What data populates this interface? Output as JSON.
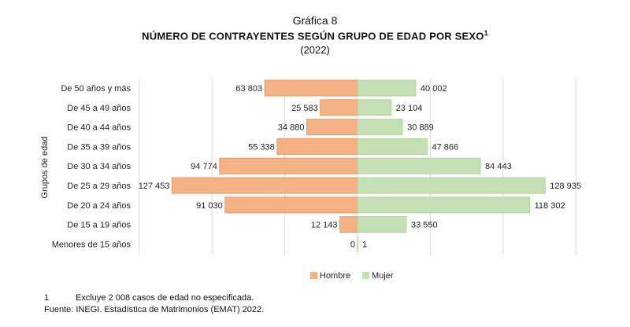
{
  "header": {
    "label": "Gráfica 8",
    "title": "NÚMERO DE CONTRAYENTES SEGÚN GRUPO DE EDAD POR SEXO",
    "title_note": "1",
    "subtitle": "(2022)"
  },
  "chart_data": {
    "type": "bar",
    "orientation": "horizontal",
    "layout": "population-pyramid",
    "ylabel": "Grupos de edad",
    "categories": [
      "De 50 años y más",
      "De 45 a 49 años",
      "De 40 a 44 años",
      "De 35 a 39 años",
      "De 30 a 34 años",
      "De 25 a 29 años",
      "De 20 a 24 años",
      "De 15 a 19 años",
      "Menores de 15 años"
    ],
    "series": [
      {
        "name": "Hombre",
        "color": "#f4b183",
        "values": [
          63803,
          25583,
          34880,
          55338,
          94774,
          127453,
          91030,
          12143,
          0
        ],
        "labels": [
          "63 803",
          "25 583",
          "34 880",
          "55 338",
          "94 774",
          "127 453",
          "91 030",
          "12 143",
          "0"
        ]
      },
      {
        "name": "Mujer",
        "color": "#c5e0b4",
        "values": [
          40002,
          23104,
          30889,
          47866,
          84443,
          128935,
          118302,
          33550,
          1
        ],
        "labels": [
          "40 002",
          "23 104",
          "30 889",
          "47 866",
          "84 443",
          "128 935",
          "118 302",
          "33 550",
          "1"
        ]
      }
    ],
    "xlim": [
      -150000,
      150000
    ],
    "grid": true,
    "legend": "bottom-center"
  },
  "footnotes": [
    {
      "mark": "1",
      "text": "Excluye 2 008 casos de edad no especificada."
    },
    {
      "mark": "Fuente:",
      "text": "INEGI. Estadística de Matrimonios (EMAT) 2022."
    }
  ]
}
